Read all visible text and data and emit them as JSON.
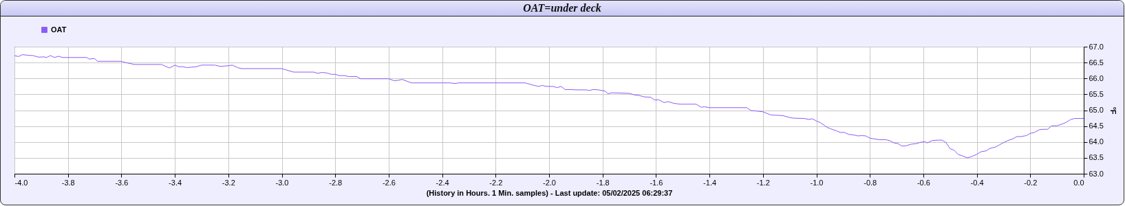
{
  "chart_data": {
    "type": "line",
    "title": "OAT=under deck",
    "xlabel": "(History in Hours. 1 Min. samples) - Last update: 05/02/2025 06:29:37",
    "ylabel": "°F",
    "x": [
      -4.0,
      -3.985,
      -3.97,
      -3.95,
      -3.93,
      -3.91,
      -3.89,
      -3.88,
      -3.865,
      -3.85,
      -3.835,
      -3.82,
      -3.73,
      -3.72,
      -3.7,
      -3.69,
      -3.6,
      -3.585,
      -3.55,
      -3.45,
      -3.42,
      -3.4,
      -3.385,
      -3.37,
      -3.355,
      -3.32,
      -3.3,
      -3.25,
      -3.23,
      -3.2,
      -3.185,
      -3.165,
      -3.15,
      -3.0,
      -2.985,
      -2.955,
      -2.88,
      -2.865,
      -2.85,
      -2.83,
      -2.815,
      -2.8,
      -2.785,
      -2.765,
      -2.75,
      -2.72,
      -2.705,
      -2.6,
      -2.58,
      -2.565,
      -2.55,
      -2.515,
      -2.37,
      -2.35,
      -2.34,
      -2.09,
      -2.08,
      -2.06,
      -2.04,
      -2.025,
      -2.01,
      -1.985,
      -1.97,
      -1.955,
      -1.94,
      -1.915,
      -1.9,
      -1.86,
      -1.85,
      -1.835,
      -1.815,
      -1.79,
      -1.78,
      -1.765,
      -1.7,
      -1.68,
      -1.665,
      -1.645,
      -1.62,
      -1.605,
      -1.59,
      -1.57,
      -1.555,
      -1.535,
      -1.51,
      -1.45,
      -1.43,
      -1.42,
      -1.4,
      -1.26,
      -1.245,
      -1.22,
      -1.2,
      -1.17,
      -1.125,
      -1.1,
      -1.085,
      -1.045,
      -1.03,
      -1.015,
      -1.0,
      -0.985,
      -0.96,
      -0.945,
      -0.925,
      -0.91,
      -0.895,
      -0.88,
      -0.86,
      -0.845,
      -0.83,
      -0.815,
      -0.8,
      -0.785,
      -0.765,
      -0.74,
      -0.725,
      -0.71,
      -0.695,
      -0.68,
      -0.665,
      -0.645,
      -0.625,
      -0.61,
      -0.595,
      -0.585,
      -0.565,
      -0.53,
      -0.515,
      -0.5,
      -0.485,
      -0.47,
      -0.45,
      -0.435,
      -0.42,
      -0.4,
      -0.385,
      -0.365,
      -0.35,
      -0.33,
      -0.315,
      -0.3,
      -0.285,
      -0.265,
      -0.25,
      -0.235,
      -0.215,
      -0.2,
      -0.185,
      -0.165,
      -0.15,
      -0.135,
      -0.12,
      -0.1,
      -0.085,
      -0.065,
      -0.05,
      -0.035,
      0.0
    ],
    "series": [
      {
        "name": "OAT",
        "color": "#8b5cf6",
        "values": [
          66.72,
          66.69,
          66.75,
          66.73,
          66.72,
          66.67,
          66.68,
          66.66,
          66.72,
          66.66,
          66.7,
          66.66,
          66.66,
          66.61,
          66.63,
          66.54,
          66.54,
          66.5,
          66.44,
          66.44,
          66.33,
          66.42,
          66.37,
          66.37,
          66.34,
          66.37,
          66.42,
          66.42,
          66.38,
          66.4,
          66.42,
          66.34,
          66.31,
          66.31,
          66.27,
          66.2,
          66.2,
          66.16,
          66.19,
          66.17,
          66.13,
          66.13,
          66.09,
          66.09,
          66.06,
          66.06,
          65.99,
          65.99,
          65.93,
          65.94,
          65.97,
          65.86,
          65.86,
          65.84,
          65.86,
          65.86,
          65.84,
          65.79,
          65.75,
          65.78,
          65.75,
          65.75,
          65.71,
          65.75,
          65.65,
          65.65,
          65.64,
          65.64,
          65.62,
          65.65,
          65.64,
          65.6,
          65.52,
          65.55,
          65.53,
          65.48,
          65.47,
          65.42,
          65.41,
          65.32,
          65.33,
          65.24,
          65.27,
          65.22,
          65.19,
          65.19,
          65.09,
          65.11,
          65.08,
          65.08,
          64.99,
          64.97,
          64.95,
          64.85,
          64.83,
          64.77,
          64.75,
          64.74,
          64.71,
          64.73,
          64.66,
          64.61,
          64.46,
          64.41,
          64.35,
          64.3,
          64.3,
          64.24,
          64.22,
          64.19,
          64.2,
          64.19,
          64.12,
          64.1,
          64.07,
          64.07,
          64.04,
          63.97,
          63.95,
          63.87,
          63.88,
          63.93,
          63.95,
          63.99,
          64.01,
          63.97,
          64.05,
          64.06,
          63.98,
          63.79,
          63.74,
          63.61,
          63.55,
          63.5,
          63.54,
          63.61,
          63.69,
          63.72,
          63.8,
          63.84,
          63.91,
          63.98,
          64.04,
          64.1,
          64.17,
          64.17,
          64.2,
          64.27,
          64.3,
          64.39,
          64.4,
          64.4,
          64.51,
          64.51,
          64.55,
          64.62,
          64.7,
          64.74,
          64.74
        ]
      }
    ],
    "xlim": [
      -4.0,
      0.0
    ],
    "xticks": [
      {
        "value": -4,
        "label": "-4.0"
      },
      -3.8,
      -3.6,
      -3.4,
      -3.2,
      {
        "value": -3,
        "label": "-3.0"
      },
      -2.8,
      -2.6,
      -2.4,
      -2.2,
      {
        "value": -2,
        "label": "-2.0"
      },
      -1.8,
      -1.6,
      -1.4,
      -1.2,
      {
        "value": -1,
        "label": "-1.0"
      },
      -0.8,
      -0.6,
      -0.4,
      -0.2,
      {
        "value": 0,
        "label": "0.0"
      }
    ],
    "ylim": [
      63.0,
      67.0
    ],
    "yticks": [
      {
        "value": 63,
        "label": "63.0"
      },
      63.5,
      {
        "value": 64,
        "label": "64.0"
      },
      64.5,
      {
        "value": 65,
        "label": "65.0"
      },
      65.5,
      {
        "value": 66,
        "label": "66.0"
      },
      66.5,
      {
        "value": 67,
        "label": "67.0"
      }
    ],
    "grid": true,
    "legend": "top left",
    "marker": "none",
    "line_style": "solid"
  }
}
